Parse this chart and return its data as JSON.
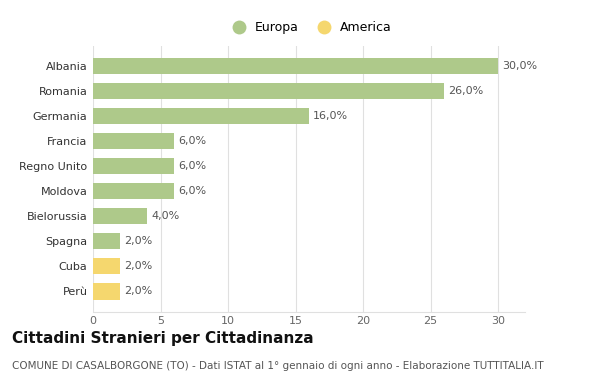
{
  "categories": [
    "Perù",
    "Cuba",
    "Spagna",
    "Bielorussia",
    "Moldova",
    "Regno Unito",
    "Francia",
    "Germania",
    "Romania",
    "Albania"
  ],
  "values": [
    2.0,
    2.0,
    2.0,
    4.0,
    6.0,
    6.0,
    6.0,
    16.0,
    26.0,
    30.0
  ],
  "colors": [
    "#f5d76e",
    "#f5d76e",
    "#aec98a",
    "#aec98a",
    "#aec98a",
    "#aec98a",
    "#aec98a",
    "#aec98a",
    "#aec98a",
    "#aec98a"
  ],
  "europa_color": "#aec98a",
  "america_color": "#f5d76e",
  "legend_labels": [
    "Europa",
    "America"
  ],
  "title": "Cittadini Stranieri per Cittadinanza",
  "subtitle": "COMUNE DI CASALBORGONE (TO) - Dati ISTAT al 1° gennaio di ogni anno - Elaborazione TUTTITALIA.IT",
  "xlim": [
    0,
    32
  ],
  "xticks": [
    0,
    5,
    10,
    15,
    20,
    25,
    30
  ],
  "title_fontsize": 11,
  "subtitle_fontsize": 7.5,
  "label_fontsize": 8,
  "tick_fontsize": 8,
  "bar_height": 0.65,
  "background_color": "#ffffff",
  "grid_color": "#e0e0e0",
  "label_color": "#555555",
  "title_color": "#111111",
  "subtitle_color": "#555555"
}
